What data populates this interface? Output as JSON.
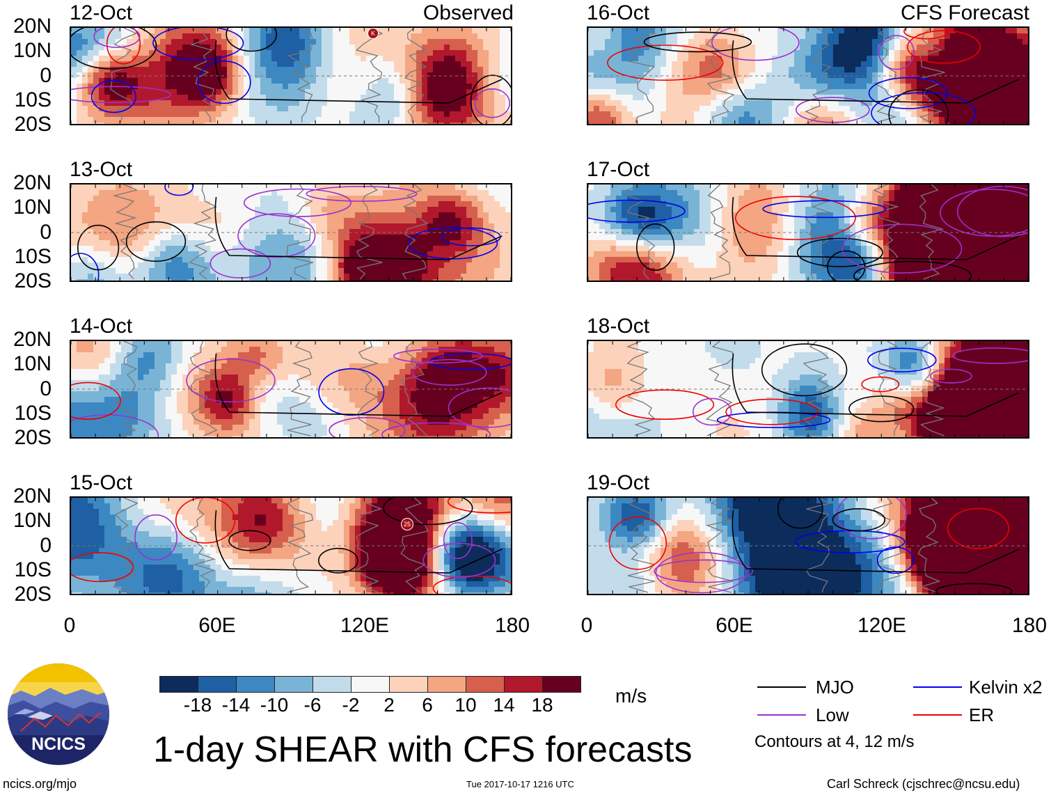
{
  "panels_left": [
    {
      "date": "12-Oct",
      "tag": "Observed",
      "storm": "K"
    },
    {
      "date": "13-Oct",
      "tag": "",
      "storm": ""
    },
    {
      "date": "14-Oct",
      "tag": "",
      "storm": ""
    },
    {
      "date": "15-Oct",
      "tag": "",
      "storm": "25"
    }
  ],
  "panels_right": [
    {
      "date": "16-Oct",
      "tag": "CFS Forecast"
    },
    {
      "date": "17-Oct",
      "tag": ""
    },
    {
      "date": "18-Oct",
      "tag": ""
    },
    {
      "date": "19-Oct",
      "tag": ""
    }
  ],
  "y_labels": [
    "20N",
    "10N",
    "0",
    "10S",
    "20S"
  ],
  "x_labels": [
    "0",
    "60E",
    "120E",
    "180"
  ],
  "colorbar": {
    "ticks": [
      "-18",
      "-14",
      "-10",
      "-6",
      "-2",
      "2",
      "6",
      "10",
      "14",
      "18"
    ],
    "colors": [
      "#0c2c5c",
      "#1f5fa3",
      "#3c88c2",
      "#79b4d7",
      "#c3dcec",
      "#f7f7f7",
      "#fcd2bb",
      "#f4a582",
      "#d6604d",
      "#b2182b",
      "#67001f"
    ],
    "units": "m/s"
  },
  "legend": {
    "items": [
      {
        "label": "MJO",
        "color": "#000000"
      },
      {
        "label": "Kelvin x2",
        "color": "#0000ee"
      },
      {
        "label": "Low",
        "color": "#9a32cd"
      },
      {
        "label": "ER",
        "color": "#ee0000"
      }
    ],
    "contours": "Contours at 4, 12 m/s"
  },
  "title": "1-day SHEAR with CFS forecasts",
  "logo_text": "NCICS",
  "footer": {
    "url": "ncics.org/mjo",
    "timestamp": "Tue 2017-10-17 1216 UTC",
    "author": "Carl Schreck (cjschrec@ncsu.edu)"
  }
}
